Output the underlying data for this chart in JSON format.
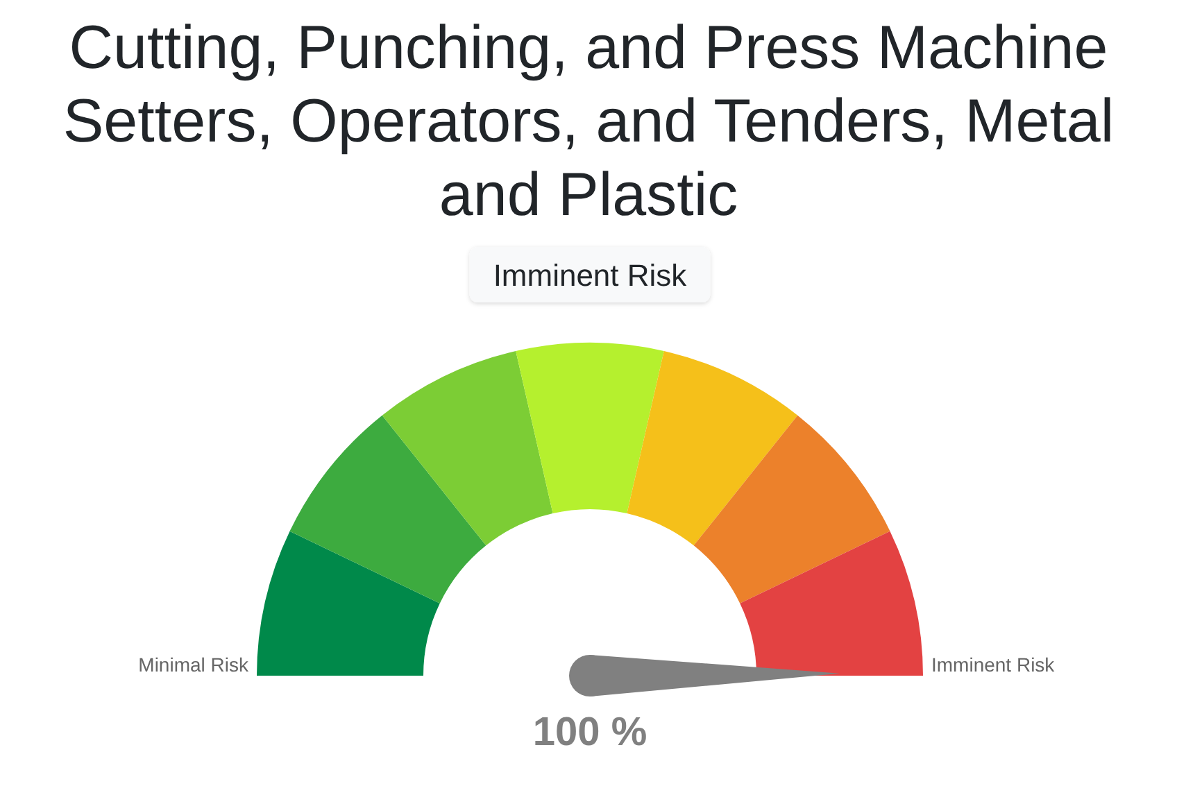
{
  "chart_data": {
    "type": "donut",
    "title": "Cutting, Punching, and Press Machine Setters, Operators, and Tenders, Metal and Plastic",
    "subtitle": "Imminent Risk",
    "categories": [
      "Minimal Risk",
      null,
      null,
      null,
      null,
      null,
      "Imminent Risk"
    ],
    "values": [
      14.29,
      14.28,
      14.29,
      14.28,
      14.29,
      14.28,
      14.29
    ],
    "colors": [
      "#00894a",
      "#3dab3f",
      "#7ccd35",
      "#b5f02e",
      "#f5c01a",
      "#ec812b",
      "#e34242"
    ],
    "needle": "Imminent Risk",
    "annotations": [
      "100 %"
    ]
  }
}
